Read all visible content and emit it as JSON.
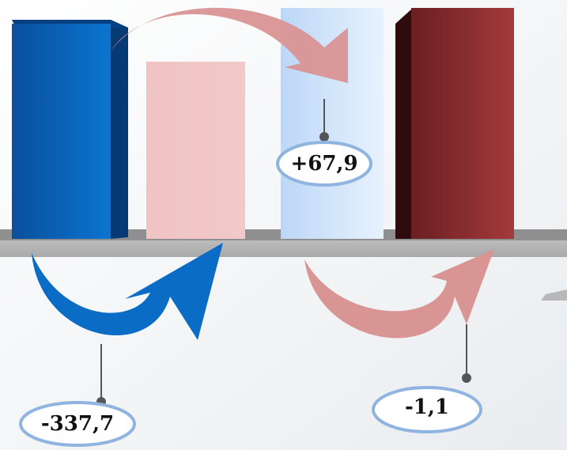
{
  "changes": {
    "first": "+67,9",
    "second": "-337,7",
    "third": "-1,1"
  }
}
